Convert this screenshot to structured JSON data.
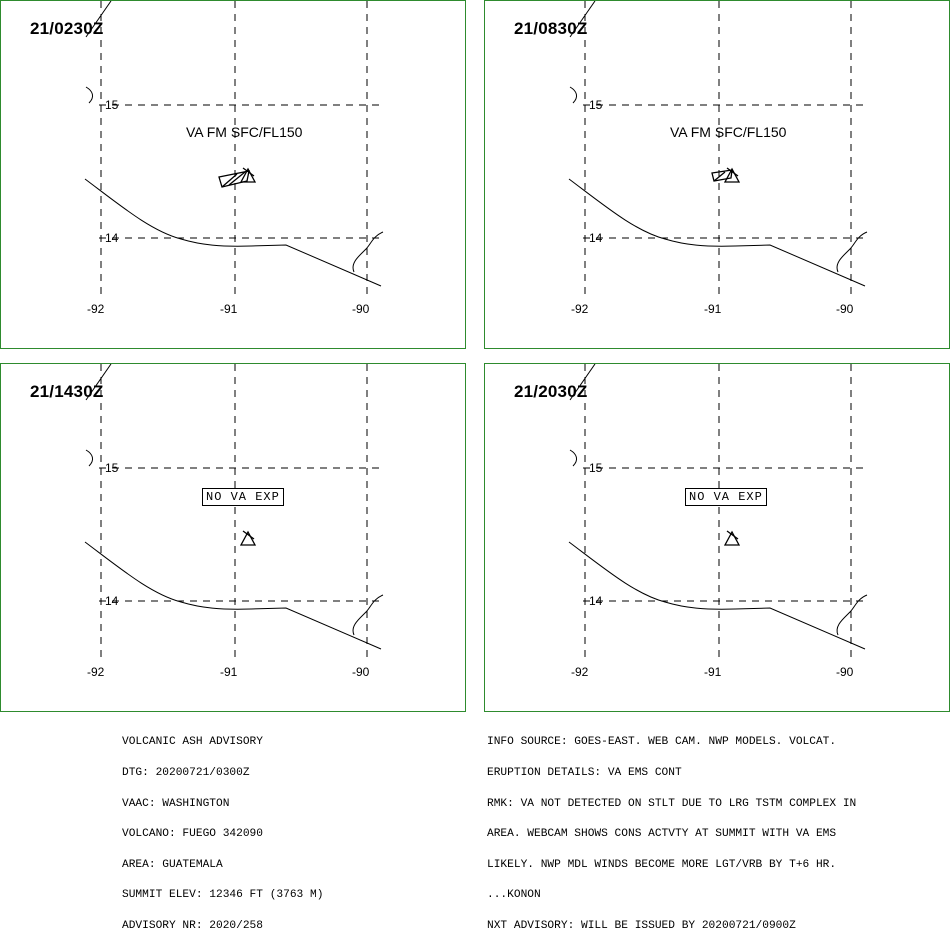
{
  "panels": [
    {
      "time": "21/0230Z",
      "va_text": "VA FM SFC/FL150",
      "no_va": ""
    },
    {
      "time": "21/0830Z",
      "va_text": "VA FM SFC/FL150",
      "no_va": ""
    },
    {
      "time": "21/1430Z",
      "va_text": "",
      "no_va": "NO VA EXP"
    },
    {
      "time": "21/2030Z",
      "va_text": "",
      "no_va": "NO VA EXP"
    }
  ],
  "map": {
    "lat_labels": [
      "15",
      "14"
    ],
    "lon_labels": [
      "-92",
      "-91",
      "-90"
    ],
    "volcano_icon": "volcano-triangle-icon",
    "colors": {
      "panel_border": "#2e8b2e",
      "lines": "#000000"
    }
  },
  "advisory_left": [
    "VOLCANIC ASH ADVISORY",
    "DTG: 20200721/0300Z",
    "VAAC: WASHINGTON",
    "VOLCANO: FUEGO 342090",
    "AREA: GUATEMALA",
    "SUMMIT ELEV: 12346 FT (3763 M)",
    "ADVISORY NR: 2020/258"
  ],
  "advisory_right": [
    "INFO SOURCE: GOES-EAST. WEB CAM. NWP MODELS. VOLCAT.",
    "ERUPTION DETAILS: VA EMS CONT",
    "RMK: VA NOT DETECTED ON STLT DUE TO LRG TSTM COMPLEX IN",
    "AREA. WEBCAM SHOWS CONS ACTVTY AT SUMMIT WITH VA EMS",
    "LIKELY. NWP MDL WINDS BECOME MORE LGT/VRB BY T+6 HR.",
    "...KONON",
    "NXT ADVISORY: WILL BE ISSUED BY 20200721/0900Z"
  ]
}
